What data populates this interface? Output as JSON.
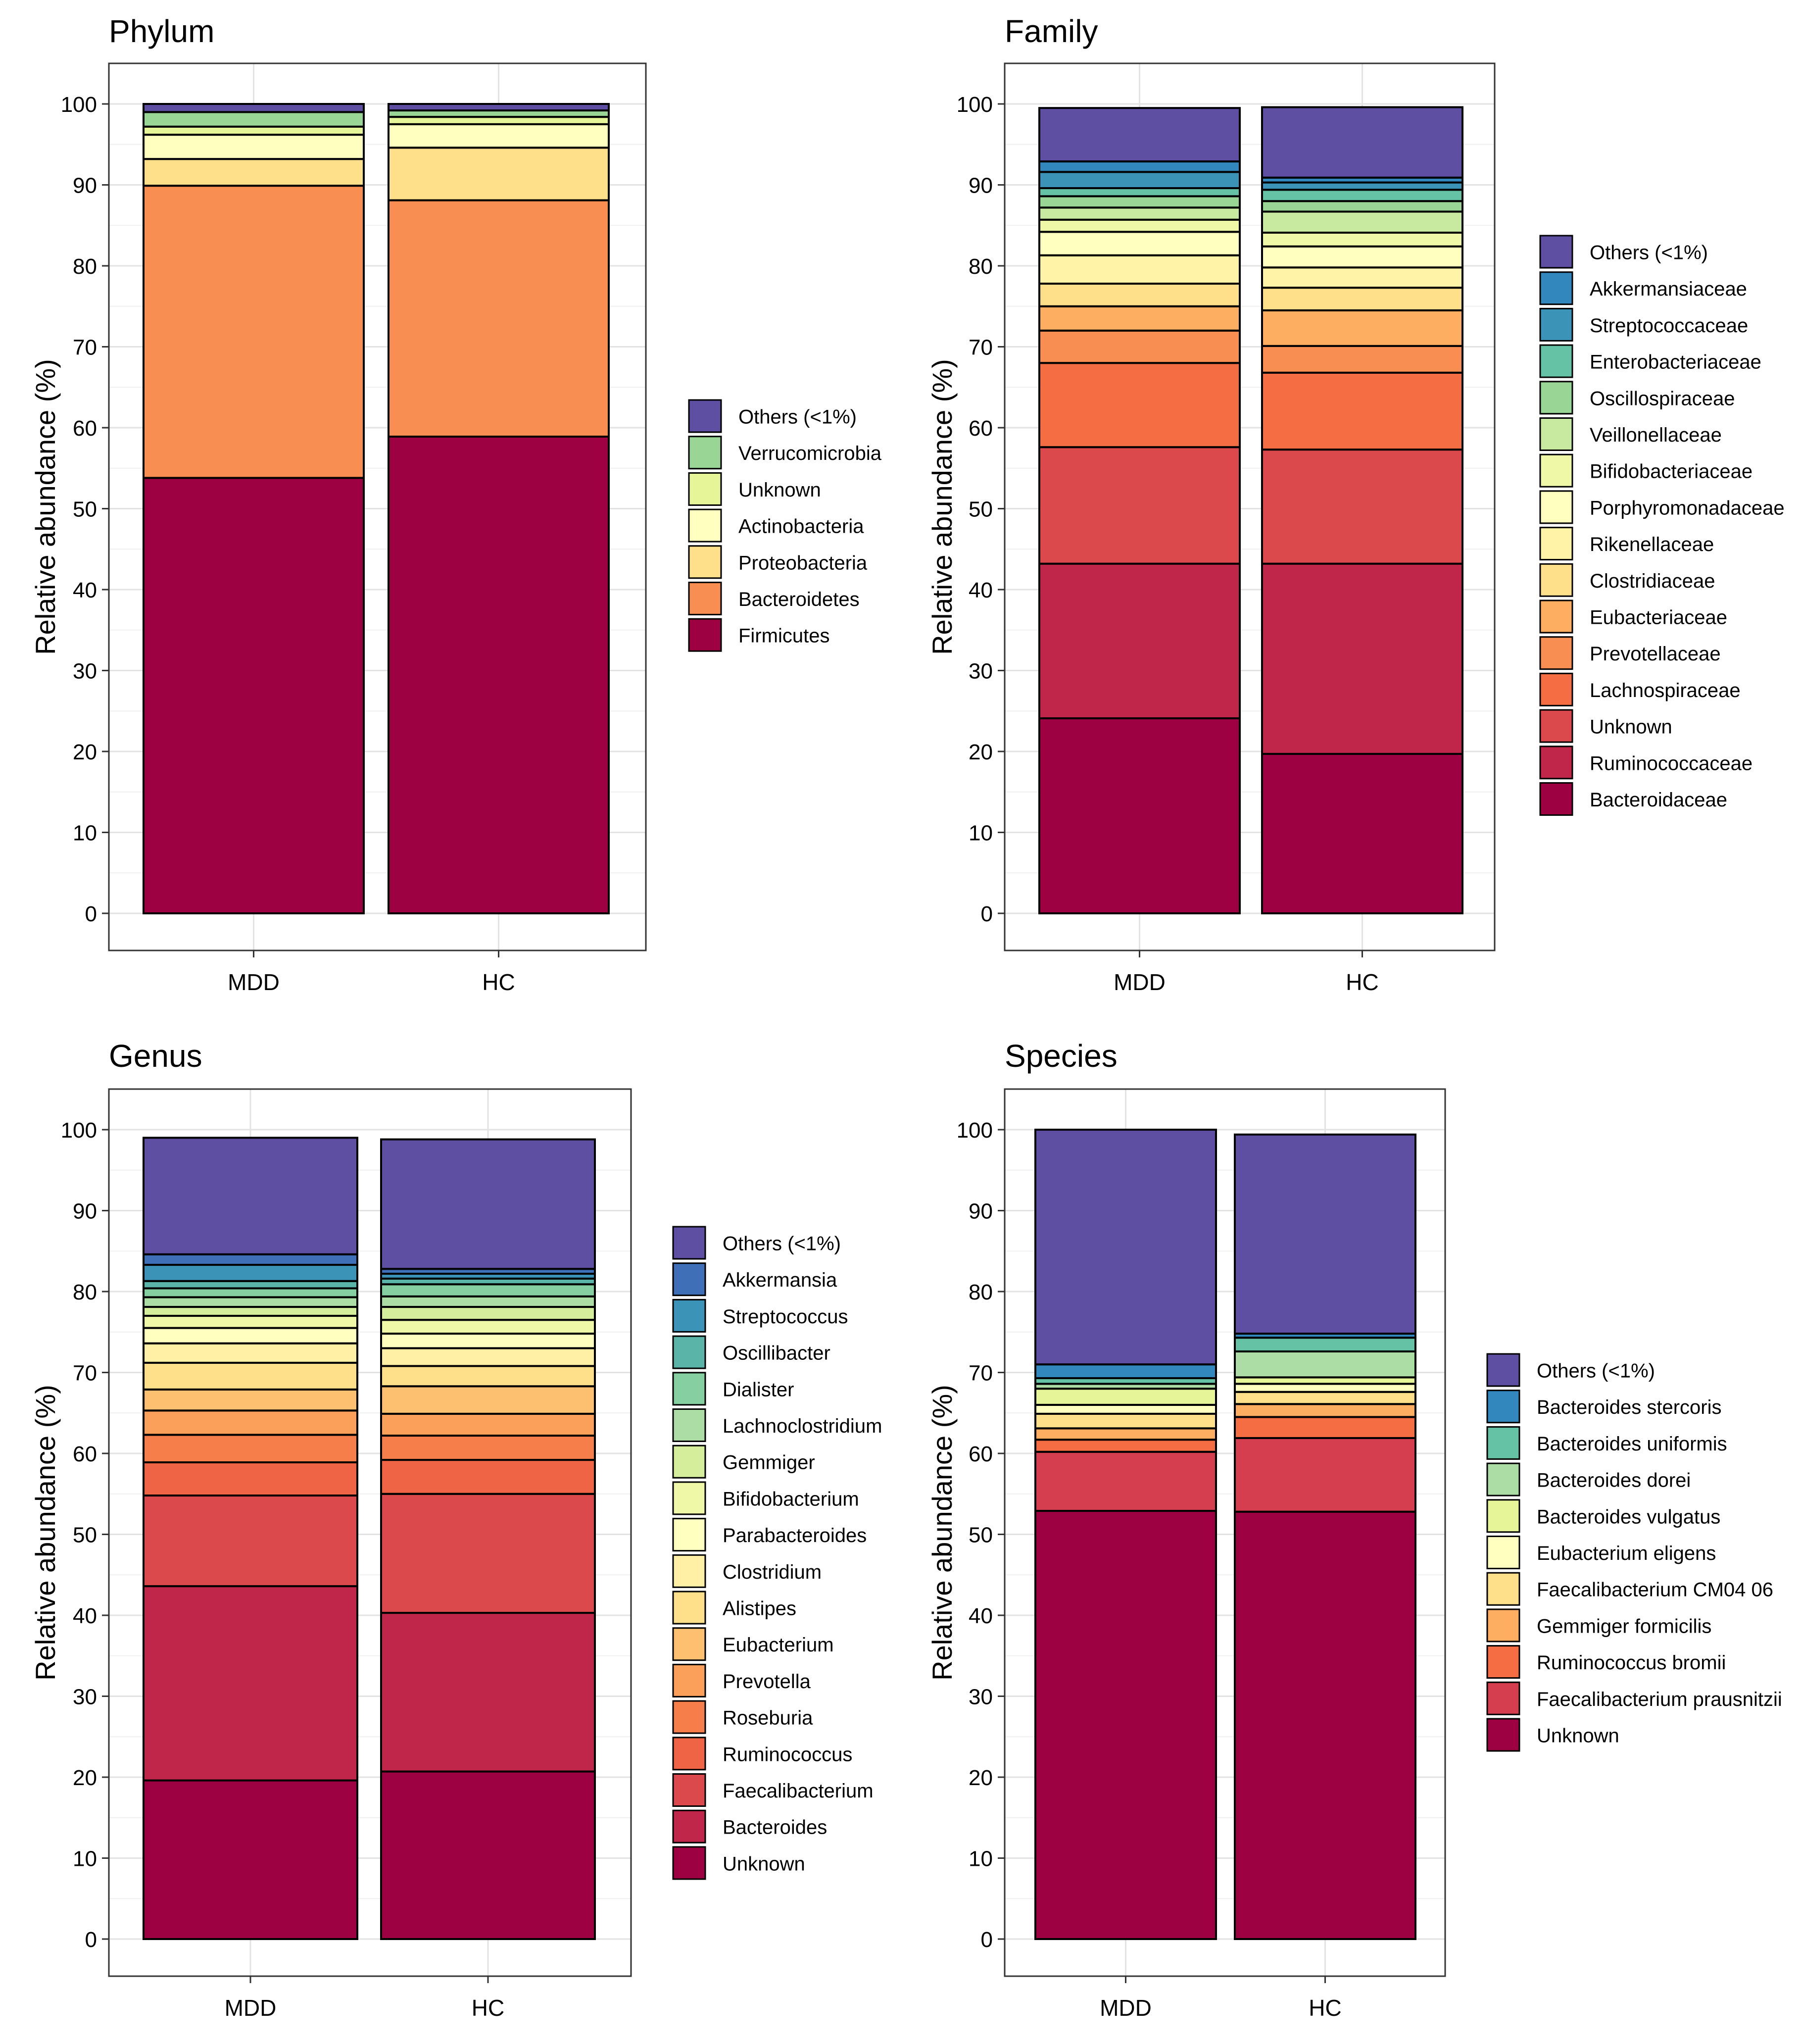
{
  "chart_data": [
    {
      "type": "stacked-bar",
      "title": "Phylum",
      "xlabel": "",
      "ylabel": "Relative abundance (%)",
      "ylim": [
        0,
        100
      ],
      "yticks": [
        0,
        10,
        20,
        30,
        40,
        50,
        60,
        70,
        80,
        90,
        100
      ],
      "grid": true,
      "legend_position": "right",
      "categories": [
        "MDD",
        "HC"
      ],
      "series": [
        {
          "name": "Firmicutes",
          "color": "#9E0142",
          "values": [
            53.8,
            58.9
          ]
        },
        {
          "name": "Bacteroidetes",
          "color": "#F98E52",
          "values": [
            36.1,
            29.2
          ]
        },
        {
          "name": "Proteobacteria",
          "color": "#FEE08B",
          "values": [
            3.3,
            6.5
          ]
        },
        {
          "name": "Actinobacteria",
          "color": "#FFFFBF",
          "values": [
            3.0,
            2.9
          ]
        },
        {
          "name": "Unknown",
          "color": "#E6F598",
          "values": [
            1.0,
            0.9
          ]
        },
        {
          "name": "Verrucomicrobia",
          "color": "#99D594",
          "values": [
            1.8,
            0.8
          ]
        },
        {
          "name": "Others (<1%)",
          "color": "#5E4FA2",
          "values": [
            1.0,
            0.8
          ]
        }
      ]
    },
    {
      "type": "stacked-bar",
      "title": "Family",
      "xlabel": "",
      "ylabel": "Relative abundance (%)",
      "ylim": [
        0,
        100
      ],
      "yticks": [
        0,
        10,
        20,
        30,
        40,
        50,
        60,
        70,
        80,
        90,
        100
      ],
      "grid": true,
      "legend_position": "right",
      "categories": [
        "MDD",
        "HC"
      ],
      "series": [
        {
          "name": "Bacteroidaceae",
          "color": "#9E0142",
          "values": [
            24.1,
            19.7
          ]
        },
        {
          "name": "Ruminococcaceae",
          "color": "#C0264A",
          "values": [
            19.1,
            23.5
          ]
        },
        {
          "name": "Unknown",
          "color": "#DC494C",
          "values": [
            14.4,
            14.1
          ]
        },
        {
          "name": "Lachnospiraceae",
          "color": "#F46D43",
          "values": [
            10.4,
            9.5
          ]
        },
        {
          "name": "Prevotellaceae",
          "color": "#F98E52",
          "values": [
            4.0,
            3.3
          ]
        },
        {
          "name": "Eubacteriaceae",
          "color": "#FDAE61",
          "values": [
            3.0,
            4.4
          ]
        },
        {
          "name": "Clostridiaceae",
          "color": "#FEE08B",
          "values": [
            2.8,
            2.8
          ]
        },
        {
          "name": "Rikenellaceae",
          "color": "#FFF3A8",
          "values": [
            3.5,
            2.5
          ]
        },
        {
          "name": "Porphyromonadaceae",
          "color": "#FFFFBF",
          "values": [
            2.9,
            2.6
          ]
        },
        {
          "name": "Bifidobacteriaceae",
          "color": "#EEF8A6",
          "values": [
            1.5,
            1.7
          ]
        },
        {
          "name": "Veillonellaceae",
          "color": "#C7E9A0",
          "values": [
            1.5,
            2.6
          ]
        },
        {
          "name": "Oscillospiraceae",
          "color": "#99D594",
          "values": [
            1.4,
            1.3
          ]
        },
        {
          "name": "Enterobacteriaceae",
          "color": "#66C2A5",
          "values": [
            1.0,
            1.4
          ]
        },
        {
          "name": "Streptococcaceae",
          "color": "#3B93B8",
          "values": [
            2.0,
            0.9
          ]
        },
        {
          "name": "Akkermansiaceae",
          "color": "#3288BD",
          "values": [
            1.3,
            0.6
          ]
        },
        {
          "name": "Others (<1%)",
          "color": "#5E4FA2",
          "values": [
            6.6,
            8.7
          ]
        }
      ]
    },
    {
      "type": "stacked-bar",
      "title": "Genus",
      "xlabel": "",
      "ylabel": "Relative abundance (%)",
      "ylim": [
        0,
        100
      ],
      "yticks": [
        0,
        10,
        20,
        30,
        40,
        50,
        60,
        70,
        80,
        90,
        100
      ],
      "grid": true,
      "legend_position": "right",
      "categories": [
        "MDD",
        "HC"
      ],
      "series": [
        {
          "name": "Unknown",
          "color": "#9E0142",
          "values": [
            19.6,
            20.7
          ]
        },
        {
          "name": "Bacteroides",
          "color": "#C0264A",
          "values": [
            24.0,
            19.6
          ]
        },
        {
          "name": "Faecalibacterium",
          "color": "#DC494C",
          "values": [
            11.2,
            14.7
          ]
        },
        {
          "name": "Ruminococcus",
          "color": "#EE6445",
          "values": [
            4.1,
            4.2
          ]
        },
        {
          "name": "Roseburia",
          "color": "#F67E4B",
          "values": [
            3.4,
            3.0
          ]
        },
        {
          "name": "Prevotella",
          "color": "#FBA05B",
          "values": [
            3.0,
            2.7
          ]
        },
        {
          "name": "Eubacterium",
          "color": "#FDC070",
          "values": [
            2.6,
            3.4
          ]
        },
        {
          "name": "Alistipes",
          "color": "#FEE08B",
          "values": [
            3.3,
            2.5
          ]
        },
        {
          "name": "Clostridium",
          "color": "#FFF0A6",
          "values": [
            2.4,
            2.2
          ]
        },
        {
          "name": "Parabacteroides",
          "color": "#FFFFBF",
          "values": [
            1.9,
            1.8
          ]
        },
        {
          "name": "Bifidobacterium",
          "color": "#EEF8A6",
          "values": [
            1.5,
            1.7
          ]
        },
        {
          "name": "Gemmiger",
          "color": "#D5EE9B",
          "values": [
            1.1,
            1.6
          ]
        },
        {
          "name": "Lachnoclostridium",
          "color": "#ABDDA4",
          "values": [
            1.2,
            1.3
          ]
        },
        {
          "name": "Dialister",
          "color": "#86CFA0",
          "values": [
            1.1,
            1.5
          ]
        },
        {
          "name": "Oscillibacter",
          "color": "#5AB4A8",
          "values": [
            0.9,
            0.7
          ]
        },
        {
          "name": "Streptococcus",
          "color": "#3B93B8",
          "values": [
            2.0,
            0.6
          ]
        },
        {
          "name": "Akkermansia",
          "color": "#3F6FB6",
          "values": [
            1.3,
            0.6
          ]
        },
        {
          "name": "Others (<1%)",
          "color": "#5E4FA2",
          "values": [
            14.4,
            16.0
          ]
        }
      ]
    },
    {
      "type": "stacked-bar",
      "title": "Species",
      "xlabel": "",
      "ylabel": "Relative abundance (%)",
      "ylim": [
        0,
        100
      ],
      "yticks": [
        0,
        10,
        20,
        30,
        40,
        50,
        60,
        70,
        80,
        90,
        100
      ],
      "grid": true,
      "legend_position": "right",
      "categories": [
        "MDD",
        "HC"
      ],
      "series": [
        {
          "name": "Unknown",
          "color": "#9E0142",
          "values": [
            52.9,
            52.8
          ]
        },
        {
          "name": "Faecalibacterium prausnitzii",
          "color": "#D53E4F",
          "values": [
            7.3,
            9.1
          ]
        },
        {
          "name": "Ruminococcus bromii",
          "color": "#F46D43",
          "values": [
            1.5,
            2.6
          ]
        },
        {
          "name": "Gemmiger formicilis",
          "color": "#FDAE61",
          "values": [
            1.4,
            1.6
          ]
        },
        {
          "name": "Faecalibacterium CM04 06",
          "color": "#FEE08B",
          "values": [
            1.8,
            1.5
          ]
        },
        {
          "name": "Eubacterium eligens",
          "color": "#FFFFBF",
          "values": [
            1.1,
            1.0
          ]
        },
        {
          "name": "Bacteroides vulgatus",
          "color": "#E6F598",
          "values": [
            2.0,
            0.8
          ]
        },
        {
          "name": "Bacteroides dorei",
          "color": "#ABDDA4",
          "values": [
            0.6,
            3.2
          ]
        },
        {
          "name": "Bacteroides uniformis",
          "color": "#66C2A5",
          "values": [
            0.7,
            1.7
          ]
        },
        {
          "name": "Bacteroides stercoris",
          "color": "#3288BD",
          "values": [
            1.7,
            0.5
          ]
        },
        {
          "name": "Others (<1%)",
          "color": "#5E4FA2",
          "values": [
            29.0,
            24.6
          ]
        }
      ]
    }
  ]
}
